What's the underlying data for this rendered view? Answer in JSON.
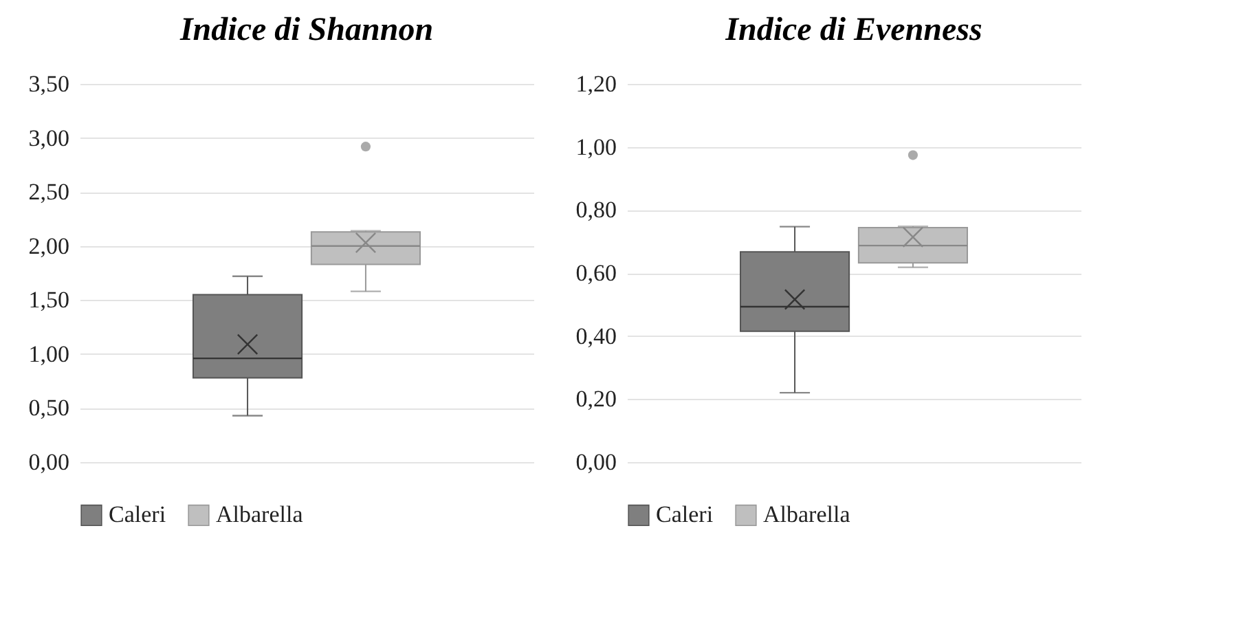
{
  "chart_data": [
    {
      "type": "box",
      "title": "Indice di Shannon",
      "categories": [
        null
      ],
      "ylim": [
        0,
        3.5
      ],
      "yticks": [
        {
          "value": 0,
          "label": "0,00"
        },
        {
          "value": 0.5,
          "label": "0,50"
        },
        {
          "value": 1,
          "label": "1,00"
        },
        {
          "value": 1.5,
          "label": "1,50"
        },
        {
          "value": 2,
          "label": "2,00"
        },
        {
          "value": 2.5,
          "label": "2,50"
        },
        {
          "value": 3,
          "label": "3,00"
        },
        {
          "value": 3.5,
          "label": "3,50"
        }
      ],
      "grid": "y",
      "legend": "bottom",
      "series": [
        {
          "name": "Caleri",
          "color": "#7f7f7f",
          "boxes": [
            {
              "low": 0.43,
              "q1": 0.78,
              "median": 0.96,
              "q3": 1.55,
              "high": 1.72,
              "mean": 1.09
            }
          ]
        },
        {
          "name": "Albarella",
          "color": "#bfbfbf",
          "boxes": [
            {
              "low": 1.58,
              "q1": 1.83,
              "median": 2.0,
              "q3": 2.13,
              "high": 2.14,
              "mean": 2.03,
              "outliers": [
                2.92
              ]
            }
          ]
        }
      ]
    },
    {
      "type": "box",
      "title": "Indice di Evenness",
      "categories": [
        null
      ],
      "ylim": [
        0,
        1.2
      ],
      "yticks": [
        {
          "value": 0,
          "label": "0,00"
        },
        {
          "value": 0.2,
          "label": "0,20"
        },
        {
          "value": 0.4,
          "label": "0,40"
        },
        {
          "value": 0.6,
          "label": "0,60"
        },
        {
          "value": 0.8,
          "label": "0,80"
        },
        {
          "value": 1,
          "label": "1,00"
        },
        {
          "value": 1.2,
          "label": "1,20"
        }
      ],
      "grid": "y",
      "legend": "bottom",
      "series": [
        {
          "name": "Caleri",
          "color": "#7f7f7f",
          "boxes": [
            {
              "low": 0.22,
              "q1": 0.415,
              "median": 0.493,
              "q3": 0.667,
              "high": 0.747,
              "mean": 0.516
            }
          ]
        },
        {
          "name": "Albarella",
          "color": "#bfbfbf",
          "boxes": [
            {
              "low": 0.618,
              "q1": 0.632,
              "median": 0.687,
              "q3": 0.744,
              "high": 0.748,
              "mean": 0.714,
              "outliers": [
                0.974
              ]
            }
          ]
        }
      ]
    }
  ]
}
